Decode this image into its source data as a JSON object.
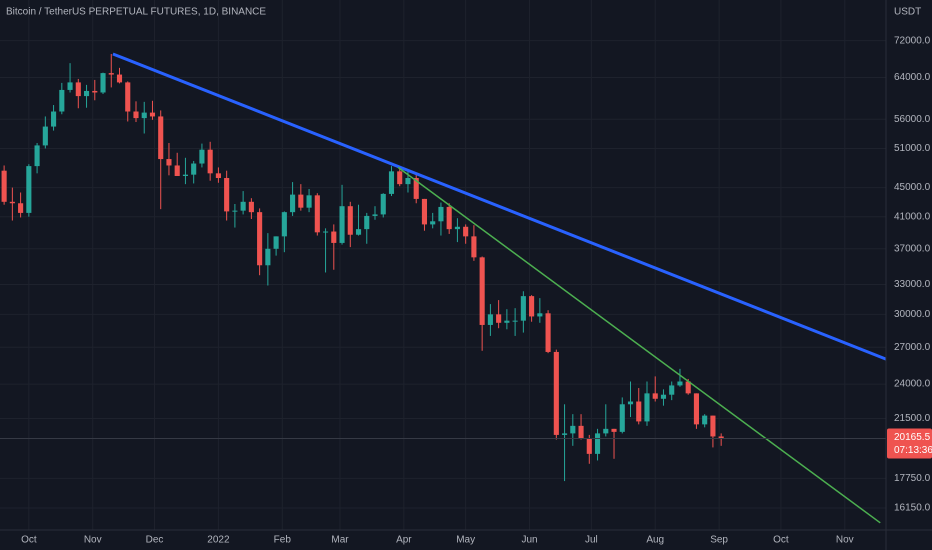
{
  "chart_data": {
    "type": "candlestick",
    "title": "Bitcoin / TetherUS PERPETUAL FUTURES, 1D, BINANCE",
    "currency": "USDT",
    "up_color": "#26a69a",
    "down_color": "#ef5350",
    "log_scale": true,
    "grid": true,
    "candles": [
      [
        47500,
        48300,
        42600,
        43000
      ],
      [
        43000,
        45000,
        40500,
        42800
      ],
      [
        42800,
        44300,
        40900,
        41500
      ],
      [
        41500,
        48500,
        41000,
        48200
      ],
      [
        48200,
        51900,
        47100,
        51500
      ],
      [
        51500,
        56500,
        51000,
        54700
      ],
      [
        54700,
        58600,
        54000,
        57400
      ],
      [
        57400,
        62900,
        56900,
        61500
      ],
      [
        61500,
        67000,
        61000,
        63000
      ],
      [
        63000,
        63700,
        58000,
        60300
      ],
      [
        60300,
        62500,
        58100,
        61300
      ],
      [
        61300,
        63500,
        59500,
        61000
      ],
      [
        61000,
        65000,
        60700,
        64900
      ],
      [
        64900,
        69000,
        62000,
        64600
      ],
      [
        64600,
        66000,
        62800,
        63000
      ],
      [
        63000,
        63200,
        55600,
        57400
      ],
      [
        57400,
        59300,
        55500,
        56200
      ],
      [
        56200,
        59200,
        53500,
        57200
      ],
      [
        57200,
        59400,
        55900,
        56500
      ],
      [
        56500,
        57600,
        42000,
        49300
      ],
      [
        49300,
        51900,
        46800,
        48300
      ],
      [
        48300,
        50300,
        46700,
        46700
      ],
      [
        46700,
        49500,
        45500,
        46900
      ],
      [
        46900,
        49000,
        45600,
        48600
      ],
      [
        48600,
        51800,
        48000,
        50800
      ],
      [
        50800,
        52100,
        46000,
        47100
      ],
      [
        47100,
        48000,
        45700,
        46400
      ],
      [
        46400,
        47500,
        40500,
        41700
      ],
      [
        41700,
        42700,
        39600,
        41800
      ],
      [
        41800,
        44500,
        41300,
        43000
      ],
      [
        43000,
        43500,
        40700,
        41600
      ],
      [
        41600,
        42100,
        34000,
        35100
      ],
      [
        35100,
        38900,
        32900,
        37000
      ],
      [
        37000,
        38500,
        36200,
        38500
      ],
      [
        38500,
        41700,
        36600,
        41600
      ],
      [
        41600,
        45800,
        41100,
        44000
      ],
      [
        44000,
        45500,
        41800,
        42200
      ],
      [
        42200,
        44800,
        41600,
        43900
      ],
      [
        43900,
        44200,
        38600,
        39000
      ],
      [
        39000,
        39500,
        34300,
        39100
      ],
      [
        39100,
        40000,
        34600,
        37700
      ],
      [
        37700,
        45400,
        37500,
        42400
      ],
      [
        42400,
        43000,
        37200,
        38700
      ],
      [
        38700,
        42600,
        38600,
        39400
      ],
      [
        39400,
        41500,
        37600,
        41100
      ],
      [
        41100,
        42400,
        40600,
        41300
      ],
      [
        41300,
        44200,
        40900,
        44100
      ],
      [
        44100,
        48200,
        43800,
        47400
      ],
      [
        47400,
        48200,
        45200,
        45500
      ],
      [
        45500,
        47400,
        44300,
        46400
      ],
      [
        46400,
        47200,
        42800,
        43400
      ],
      [
        43400,
        43400,
        39200,
        40000
      ],
      [
        40000,
        41500,
        39500,
        40400
      ],
      [
        40400,
        42900,
        38600,
        42300
      ],
      [
        42300,
        42800,
        38800,
        39400
      ],
      [
        39400,
        40800,
        37800,
        39700
      ],
      [
        39700,
        40000,
        37600,
        38500
      ],
      [
        38500,
        39900,
        35600,
        36000
      ],
      [
        36000,
        36100,
        26700,
        29000
      ],
      [
        29000,
        31000,
        28000,
        30000
      ],
      [
        30000,
        31400,
        28700,
        29200
      ],
      [
        29200,
        30500,
        28600,
        29400
      ],
      [
        29400,
        30600,
        28000,
        29400
      ],
      [
        29400,
        32300,
        28300,
        31800
      ],
      [
        31800,
        31900,
        29300,
        29800
      ],
      [
        29800,
        31600,
        29200,
        30100
      ],
      [
        30100,
        30400,
        26500,
        26600
      ],
      [
        26600,
        26800,
        20100,
        20400
      ],
      [
        20400,
        22500,
        17600,
        20500
      ],
      [
        20500,
        21800,
        19700,
        21000
      ],
      [
        21000,
        21800,
        20100,
        20200
      ],
      [
        20200,
        20400,
        18600,
        19200
      ],
      [
        19200,
        20800,
        18800,
        20500
      ],
      [
        20500,
        22500,
        20300,
        20800
      ],
      [
        20800,
        20800,
        18900,
        20600
      ],
      [
        20600,
        23000,
        20500,
        22500
      ],
      [
        22500,
        24200,
        21600,
        22700
      ],
      [
        22700,
        23700,
        21100,
        21300
      ],
      [
        21300,
        24200,
        21000,
        23300
      ],
      [
        23300,
        24600,
        22700,
        22900
      ],
      [
        22900,
        23600,
        22400,
        23200
      ],
      [
        23200,
        24200,
        22800,
        23900
      ],
      [
        23900,
        25200,
        23800,
        24200
      ],
      [
        24200,
        24400,
        23200,
        23300
      ],
      [
        23300,
        23300,
        20800,
        21100
      ],
      [
        21100,
        21800,
        20900,
        21700
      ],
      [
        21700,
        21700,
        19600,
        20300
      ],
      [
        20300,
        20500,
        19700,
        20165.5
      ]
    ],
    "countdown": "07:13:36",
    "trendlines": [
      {
        "color": "#2962ff",
        "from": [
          13.2,
          69000
        ],
        "to": [
          107,
          26000
        ]
      },
      {
        "color": "#4caf50",
        "from": [
          47.8,
          48000
        ],
        "to": [
          106.3,
          15400
        ]
      }
    ],
    "xlim": [
      -0.5,
      107
    ],
    "xticks": [
      {
        "value": 3,
        "label": "Oct"
      },
      {
        "value": 10.75,
        "label": "Nov"
      },
      {
        "value": 18.25,
        "label": "Dec"
      },
      {
        "value": 26,
        "label": "2022"
      },
      {
        "value": 33.75,
        "label": "Feb"
      },
      {
        "value": 40.75,
        "label": "Mar"
      },
      {
        "value": 48.5,
        "label": "Apr"
      },
      {
        "value": 56,
        "label": "May"
      },
      {
        "value": 63.75,
        "label": "Jun"
      },
      {
        "value": 71.25,
        "label": "Jul"
      },
      {
        "value": 79,
        "label": "Aug"
      },
      {
        "value": 86.75,
        "label": "Sep"
      },
      {
        "value": 94.25,
        "label": "Oct"
      },
      {
        "value": 102,
        "label": "Nov"
      }
    ],
    "ylim": [
      15050,
      82000
    ],
    "yticks": [
      {
        "value": 72000,
        "label": "72000.0"
      },
      {
        "value": 64000,
        "label": "64000.0"
      },
      {
        "value": 56000,
        "label": "56000.0"
      },
      {
        "value": 51000,
        "label": "51000.0"
      },
      {
        "value": 45000,
        "label": "45000.0"
      },
      {
        "value": 41000,
        "label": "41000.0"
      },
      {
        "value": 37000,
        "label": "37000.0"
      },
      {
        "value": 33000,
        "label": "33000.0"
      },
      {
        "value": 30000,
        "label": "30000.0"
      },
      {
        "value": 27000,
        "label": "27000.0"
      },
      {
        "value": 24000,
        "label": "24000.0"
      },
      {
        "value": 21500,
        "label": "21500.0"
      },
      {
        "value": 17750,
        "label": "17750.0"
      },
      {
        "value": 16150,
        "label": "16150.0"
      }
    ]
  }
}
